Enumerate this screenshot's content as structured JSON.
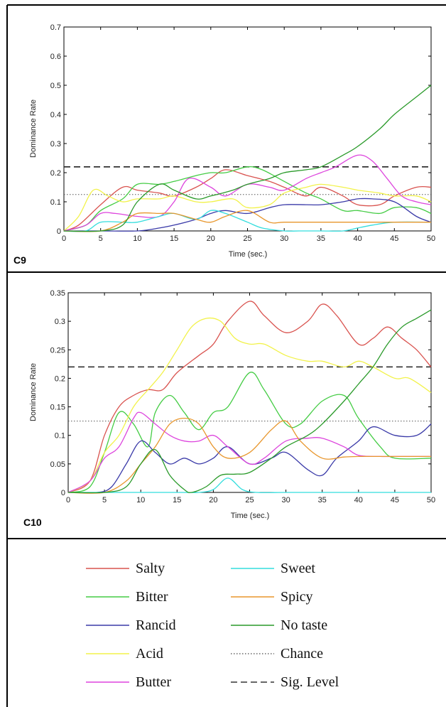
{
  "panels": [
    {
      "label": "C9",
      "chart_data": {
        "type": "line",
        "xlabel": "Time (sec.)",
        "ylabel": "Dominance Rate",
        "xlim": [
          0,
          50
        ],
        "ylim": [
          0,
          0.7
        ],
        "xticks": [
          0,
          5,
          10,
          15,
          20,
          25,
          30,
          35,
          40,
          45,
          50
        ],
        "yticks": [
          0,
          0.1,
          0.2,
          0.3,
          0.4,
          0.5,
          0.6,
          0.7
        ],
        "ytick_labels": [
          "0",
          "0.1",
          "0.2",
          "0.3",
          "0.4",
          "0.5",
          "0.6",
          "0.7"
        ],
        "grid": false,
        "chance_level": 0.125,
        "sig_level": 0.22,
        "series": [
          {
            "name": "Salty",
            "color": "#d9534f",
            "x": [
              0,
              2,
              5,
              8,
              10,
              13,
              15,
              18,
              20,
              22,
              25,
              28,
              30,
              33,
              35,
              38,
              40,
              43,
              45,
              48,
              50
            ],
            "y": [
              0,
              0.02,
              0.09,
              0.15,
              0.14,
              0.13,
              0.12,
              0.15,
              0.18,
              0.21,
              0.19,
              0.17,
              0.15,
              0.12,
              0.15,
              0.12,
              0.09,
              0.09,
              0.12,
              0.15,
              0.15
            ]
          },
          {
            "name": "Bitter",
            "color": "#44cc44",
            "x": [
              0,
              3,
              5,
              8,
              10,
              13,
              15,
              18,
              20,
              22,
              25,
              27,
              30,
              33,
              35,
              38,
              40,
              43,
              45,
              48,
              50
            ],
            "y": [
              0,
              0.02,
              0.07,
              0.11,
              0.16,
              0.16,
              0.17,
              0.19,
              0.2,
              0.2,
              0.22,
              0.21,
              0.17,
              0.13,
              0.11,
              0.07,
              0.07,
              0.06,
              0.08,
              0.08,
              0.06
            ]
          },
          {
            "name": "Rancid",
            "color": "#3a3aa8",
            "x": [
              0,
              5,
              10,
              13,
              15,
              18,
              20,
              22,
              25,
              28,
              30,
              33,
              35,
              38,
              40,
              42,
              45,
              48,
              50
            ],
            "y": [
              0,
              0,
              0,
              0.01,
              0.02,
              0.04,
              0.06,
              0.07,
              0.06,
              0.08,
              0.09,
              0.09,
              0.09,
              0.1,
              0.11,
              0.11,
              0.1,
              0.05,
              0.03
            ]
          },
          {
            "name": "Acid",
            "color": "#f2f24a",
            "x": [
              0,
              2,
              4,
              6,
              8,
              10,
              13,
              15,
              18,
              20,
              23,
              25,
              28,
              30,
              33,
              35,
              38,
              40,
              43,
              45,
              48,
              50
            ],
            "y": [
              0,
              0.05,
              0.14,
              0.12,
              0.1,
              0.11,
              0.11,
              0.12,
              0.1,
              0.1,
              0.11,
              0.08,
              0.09,
              0.13,
              0.15,
              0.16,
              0.15,
              0.14,
              0.13,
              0.12,
              0.12,
              0.1
            ]
          },
          {
            "name": "Butter",
            "color": "#dd44dd",
            "x": [
              0,
              3,
              5,
              7,
              10,
              13,
              15,
              17,
              20,
              22,
              25,
              28,
              30,
              33,
              35,
              37,
              40,
              42,
              44,
              46,
              48,
              50
            ],
            "y": [
              0,
              0.02,
              0.06,
              0.06,
              0.05,
              0.05,
              0.1,
              0.18,
              0.15,
              0.12,
              0.16,
              0.15,
              0.14,
              0.18,
              0.2,
              0.22,
              0.26,
              0.24,
              0.18,
              0.12,
              0.1,
              0.09
            ]
          },
          {
            "name": "Sweet",
            "color": "#33dddd",
            "x": [
              0,
              3,
              5,
              8,
              10,
              13,
              15,
              18,
              20,
              22,
              25,
              27,
              30,
              32,
              35,
              38,
              40,
              42,
              45,
              50
            ],
            "y": [
              0,
              0,
              0.03,
              0.03,
              0.03,
              0.05,
              0.06,
              0.04,
              0.07,
              0.06,
              0.03,
              0.01,
              0,
              0,
              0,
              0,
              0.01,
              0.02,
              0.03,
              0.03
            ]
          },
          {
            "name": "Spicy",
            "color": "#e8962c",
            "x": [
              0,
              5,
              8,
              10,
              13,
              15,
              18,
              20,
              22,
              25,
              28,
              30,
              35,
              40,
              45,
              50
            ],
            "y": [
              0,
              0,
              0.03,
              0.06,
              0.06,
              0.06,
              0.04,
              0.03,
              0.05,
              0.07,
              0.03,
              0.03,
              0.03,
              0.03,
              0.03,
              0.03
            ]
          },
          {
            "name": "No taste",
            "color": "#2a9a2a",
            "x": [
              0,
              5,
              8,
              10,
              13,
              15,
              18,
              20,
              23,
              25,
              28,
              30,
              33,
              35,
              38,
              40,
              43,
              45,
              48,
              50
            ],
            "y": [
              0,
              0,
              0.02,
              0.1,
              0.16,
              0.14,
              0.11,
              0.12,
              0.14,
              0.16,
              0.18,
              0.2,
              0.21,
              0.22,
              0.26,
              0.29,
              0.35,
              0.4,
              0.46,
              0.5
            ]
          }
        ]
      }
    },
    {
      "label": "C10",
      "chart_data": {
        "type": "line",
        "xlabel": "Time (sec.)",
        "ylabel": "Dominance Rate",
        "xlim": [
          0,
          50
        ],
        "ylim": [
          0,
          0.35
        ],
        "xticks": [
          0,
          5,
          10,
          15,
          20,
          25,
          30,
          35,
          40,
          45,
          50
        ],
        "yticks": [
          0,
          0.05,
          0.1,
          0.15,
          0.2,
          0.25,
          0.3,
          0.35
        ],
        "ytick_labels": [
          "0",
          "0.05",
          "0.1",
          "0.15",
          "0.2",
          "0.25",
          "0.3",
          "0.35"
        ],
        "grid": false,
        "chance_level": 0.125,
        "sig_level": 0.22,
        "series": [
          {
            "name": "Salty",
            "color": "#d9534f",
            "x": [
              0,
              3,
              5,
              7,
              9,
              11,
              13,
              15,
              18,
              20,
              22,
              25,
              27,
              30,
              33,
              35,
              37,
              40,
              42,
              44,
              46,
              48,
              50
            ],
            "y": [
              0,
              0.02,
              0.1,
              0.15,
              0.17,
              0.18,
              0.18,
              0.21,
              0.24,
              0.26,
              0.3,
              0.335,
              0.31,
              0.28,
              0.3,
              0.33,
              0.31,
              0.26,
              0.27,
              0.29,
              0.27,
              0.25,
              0.22
            ]
          },
          {
            "name": "Bitter",
            "color": "#44cc44",
            "x": [
              0,
              3,
              5,
              7,
              9,
              11,
              12,
              14,
              16,
              18,
              20,
              22,
              25,
              27,
              30,
              32,
              35,
              38,
              40,
              43,
              45,
              50
            ],
            "y": [
              0,
              0.01,
              0.07,
              0.14,
              0.12,
              0.08,
              0.14,
              0.17,
              0.14,
              0.11,
              0.14,
              0.15,
              0.21,
              0.18,
              0.12,
              0.12,
              0.16,
              0.17,
              0.13,
              0.08,
              0.06,
              0.06
            ]
          },
          {
            "name": "Rancid",
            "color": "#3a3aa8",
            "x": [
              0,
              4,
              6,
              8,
              10,
              12,
              14,
              16,
              18,
              20,
              22,
              25,
              28,
              30,
              33,
              35,
              37,
              40,
              42,
              45,
              48,
              50
            ],
            "y": [
              0,
              0,
              0.01,
              0.05,
              0.09,
              0.07,
              0.05,
              0.06,
              0.05,
              0.06,
              0.08,
              0.05,
              0.06,
              0.07,
              0.04,
              0.03,
              0.06,
              0.09,
              0.115,
              0.1,
              0.1,
              0.12
            ]
          },
          {
            "name": "Acid",
            "color": "#f2f24a",
            "x": [
              0,
              3,
              5,
              7,
              9,
              11,
              13,
              15,
              17,
              19,
              21,
              23,
              25,
              27,
              30,
              33,
              35,
              38,
              40,
              42,
              45,
              47,
              50
            ],
            "y": [
              0,
              0.02,
              0.07,
              0.1,
              0.15,
              0.18,
              0.21,
              0.25,
              0.29,
              0.305,
              0.3,
              0.27,
              0.26,
              0.26,
              0.24,
              0.23,
              0.23,
              0.22,
              0.23,
              0.22,
              0.2,
              0.2,
              0.175
            ]
          },
          {
            "name": "Butter",
            "color": "#dd44dd",
            "x": [
              0,
              3,
              5,
              7,
              9,
              10,
              12,
              14,
              16,
              18,
              20,
              22,
              25,
              27,
              30,
              33,
              35,
              38,
              40,
              43,
              45,
              50
            ],
            "y": [
              0,
              0.02,
              0.06,
              0.08,
              0.13,
              0.14,
              0.12,
              0.1,
              0.09,
              0.09,
              0.1,
              0.08,
              0.05,
              0.06,
              0.09,
              0.095,
              0.095,
              0.08,
              0.065,
              0.063,
              0.063,
              0.063
            ]
          },
          {
            "name": "Sweet",
            "color": "#33dddd",
            "x": [
              0,
              15,
              18,
              20,
              22,
              24,
              26,
              30,
              35,
              40,
              45,
              50
            ],
            "y": [
              0,
              0,
              0,
              0.005,
              0.025,
              0.005,
              0,
              0,
              0,
              0,
              0,
              0
            ]
          },
          {
            "name": "Spicy",
            "color": "#e8962c",
            "x": [
              0,
              5,
              8,
              10,
              12,
              14,
              16,
              18,
              20,
              22,
              25,
              28,
              30,
              32,
              35,
              38,
              40,
              45,
              50
            ],
            "y": [
              0,
              0,
              0.02,
              0.05,
              0.08,
              0.12,
              0.13,
              0.12,
              0.08,
              0.06,
              0.07,
              0.11,
              0.125,
              0.09,
              0.06,
              0.062,
              0.063,
              0.063,
              0.063
            ]
          },
          {
            "name": "No taste",
            "color": "#2a9a2a",
            "x": [
              0,
              5,
              8,
              10,
              12,
              14,
              16,
              17,
              19,
              21,
              23,
              25,
              28,
              30,
              33,
              35,
              38,
              40,
              42,
              44,
              46,
              48,
              50
            ],
            "y": [
              0,
              0,
              0.01,
              0.05,
              0.075,
              0.03,
              0.005,
              0,
              0.01,
              0.03,
              0.032,
              0.035,
              0.06,
              0.08,
              0.1,
              0.12,
              0.16,
              0.19,
              0.22,
              0.26,
              0.29,
              0.305,
              0.32
            ]
          }
        ]
      }
    }
  ],
  "legend": {
    "items": [
      {
        "label": "Salty",
        "color": "#d9534f",
        "style": "solid"
      },
      {
        "label": "Bitter",
        "color": "#44cc44",
        "style": "solid"
      },
      {
        "label": "Rancid",
        "color": "#3a3aa8",
        "style": "solid"
      },
      {
        "label": "Acid",
        "color": "#f2f24a",
        "style": "solid"
      },
      {
        "label": "Butter",
        "color": "#dd44dd",
        "style": "solid"
      },
      {
        "label": "Sweet",
        "color": "#33dddd",
        "style": "solid"
      },
      {
        "label": "Spicy",
        "color": "#e8962c",
        "style": "solid"
      },
      {
        "label": "No taste",
        "color": "#2a9a2a",
        "style": "solid"
      },
      {
        "label": "Chance",
        "color": "#666666",
        "style": "dotted"
      },
      {
        "label": "Sig. Level",
        "color": "#333333",
        "style": "dashed"
      }
    ]
  }
}
